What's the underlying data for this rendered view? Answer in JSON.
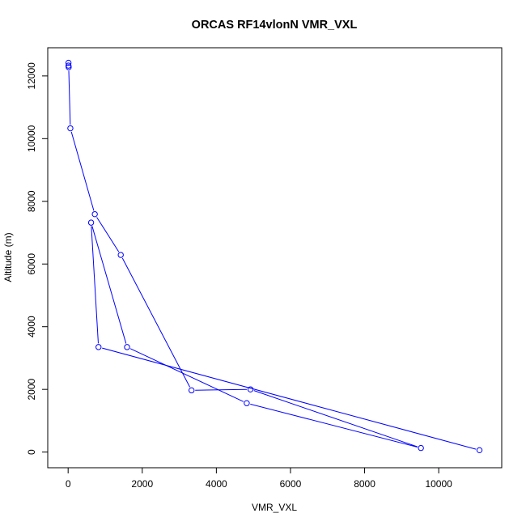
{
  "chart_data": {
    "type": "line",
    "title": "ORCAS RF14vlonN VMR_VXL",
    "xlabel": "VMR_VXL",
    "ylabel": "Altitude (m)",
    "xlim": [
      -550,
      11700
    ],
    "ylim": [
      -500,
      12900
    ],
    "xticks": [
      0,
      2000,
      4000,
      6000,
      8000,
      10000
    ],
    "yticks": [
      0,
      2000,
      4000,
      6000,
      8000,
      10000,
      12000
    ],
    "grid": false,
    "legend": "none",
    "series": [
      {
        "color": "#0000ff",
        "marker": "open-circle",
        "x": [
          10,
          10,
          15,
          60,
          720,
          1420,
          3330,
          4920,
          9520,
          4820,
          1590,
          620,
          820,
          11100
        ],
        "y": [
          12420,
          12330,
          12280,
          10330,
          7590,
          6290,
          1970,
          2000,
          130,
          1560,
          3350,
          7320,
          3350,
          60
        ]
      }
    ]
  }
}
